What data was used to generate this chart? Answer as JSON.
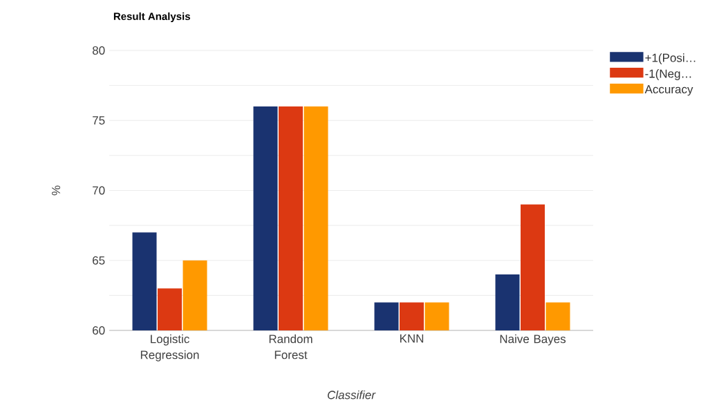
{
  "chart_data": {
    "type": "bar",
    "title": "Result Analysis",
    "xlabel": "Classifier",
    "ylabel": "%",
    "categories": [
      "Logistic Regression",
      "Random Forest",
      "KNN",
      "Naive Bayes"
    ],
    "series": [
      {
        "name": "+1(Posi…",
        "color": "#1a3370",
        "values": [
          67,
          76,
          62,
          64
        ]
      },
      {
        "name": "-1(Neg…",
        "color": "#dc3912",
        "values": [
          63,
          76,
          62,
          69
        ]
      },
      {
        "name": "Accuracy",
        "color": "#ff9900",
        "values": [
          65,
          76,
          62,
          62
        ]
      }
    ],
    "ylim": [
      60,
      80
    ],
    "yticks": [
      60,
      {
        "value": 62.5,
        "label": null
      },
      65,
      {
        "value": 67.5,
        "label": null
      },
      70,
      {
        "value": 72.5,
        "label": null
      },
      75,
      {
        "value": 77.5,
        "label": null
      },
      80
    ],
    "grid": "y",
    "legend": "top right"
  }
}
